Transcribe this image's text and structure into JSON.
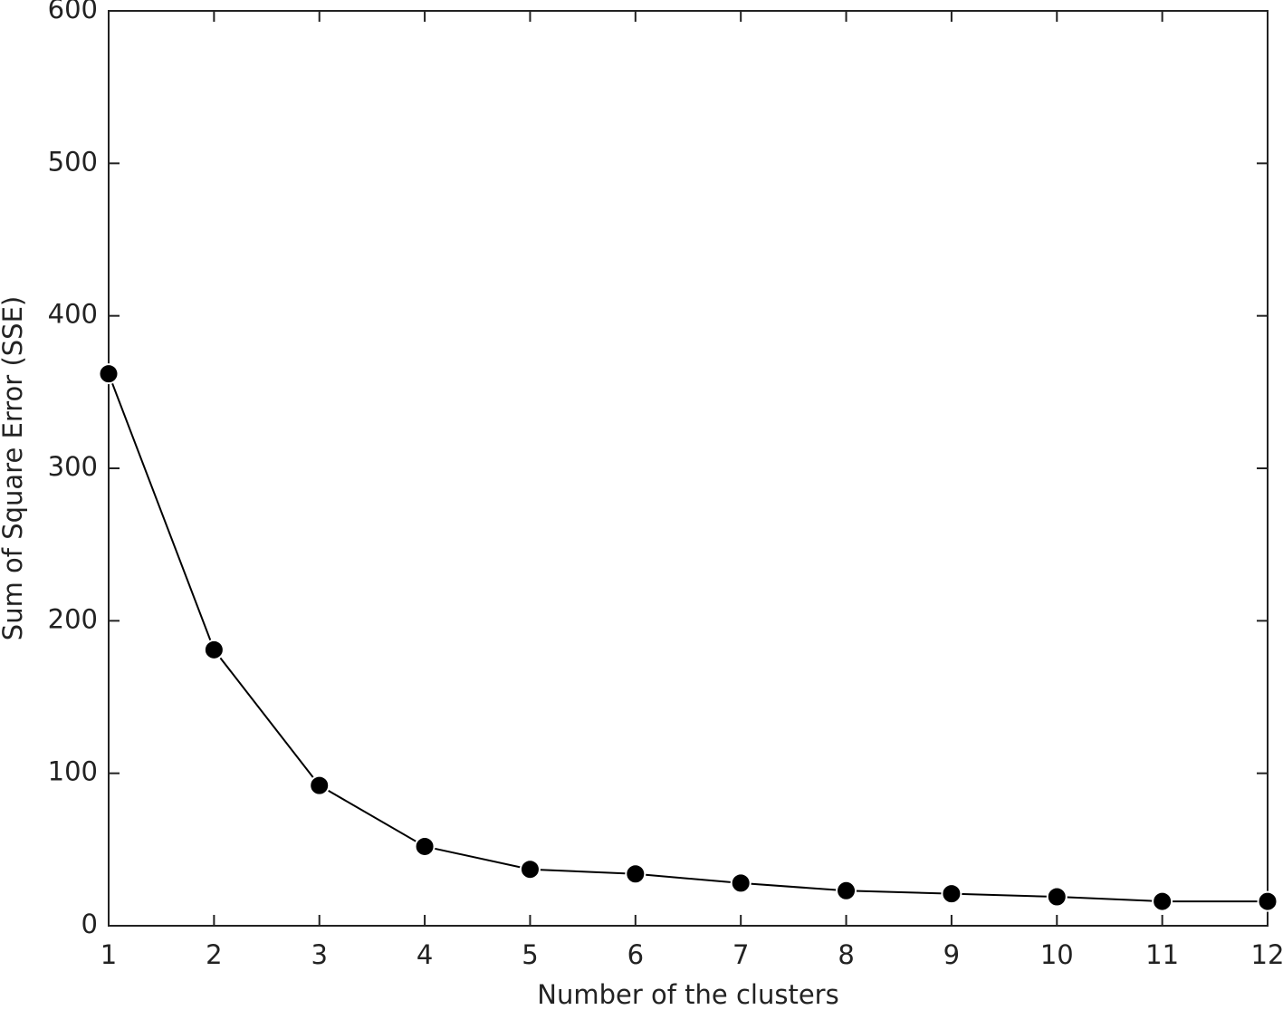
{
  "chart_data": {
    "type": "line",
    "xlabel": "Number of the clusters",
    "ylabel": "Sum of Square Error (SSE)",
    "x": [
      1,
      2,
      3,
      4,
      5,
      6,
      7,
      8,
      9,
      10,
      11,
      12
    ],
    "series": [
      {
        "color": "#000000",
        "values": [
          362,
          181,
          92,
          52,
          37,
          34,
          28,
          23,
          21,
          19,
          16,
          16
        ]
      }
    ],
    "xlim": [
      1,
      12
    ],
    "xticks": [
      1,
      2,
      3,
      4,
      5,
      6,
      7,
      8,
      9,
      10,
      11,
      12
    ],
    "ylim": [
      0,
      600
    ],
    "yticks": [
      0,
      100,
      200,
      300,
      400,
      500,
      600
    ],
    "grid": false,
    "markers": true
  }
}
